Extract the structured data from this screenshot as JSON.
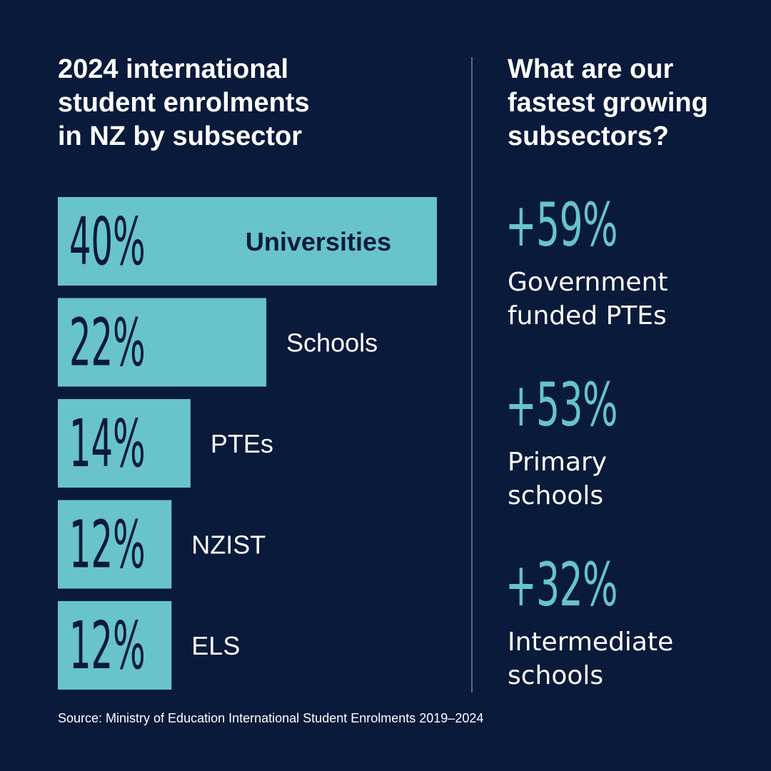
{
  "colors": {
    "background": "#0a1a3a",
    "bar": "#68c3ca",
    "bar_text": "#0a1a3a",
    "accent": "#68c3ca",
    "text": "#ffffff",
    "divider": "#5b6a84"
  },
  "left_title": "2024 international\nstudent enrolments\nin NZ by subsector",
  "right_title": "What are our\nfastest growing\nsubsectors?",
  "chart_data": {
    "type": "bar",
    "orientation": "horizontal",
    "title": "2024 international student enrolments in NZ by subsector",
    "categories": [
      "Universities",
      "Schools",
      "PTEs",
      "NZIST",
      "ELS"
    ],
    "values": [
      40,
      22,
      14,
      12,
      12
    ],
    "value_labels": [
      "40%",
      "22%",
      "14%",
      "12%",
      "12%"
    ],
    "unit": "%"
  },
  "growth": [
    {
      "value": "+59%",
      "label": "Government\nfunded PTEs"
    },
    {
      "value": "+53%",
      "label": "Primary\nschools"
    },
    {
      "value": "+32%",
      "label": "Intermediate\nschools"
    }
  ],
  "source": "Source: Ministry of Education International Student Enrolments 2019–2024"
}
